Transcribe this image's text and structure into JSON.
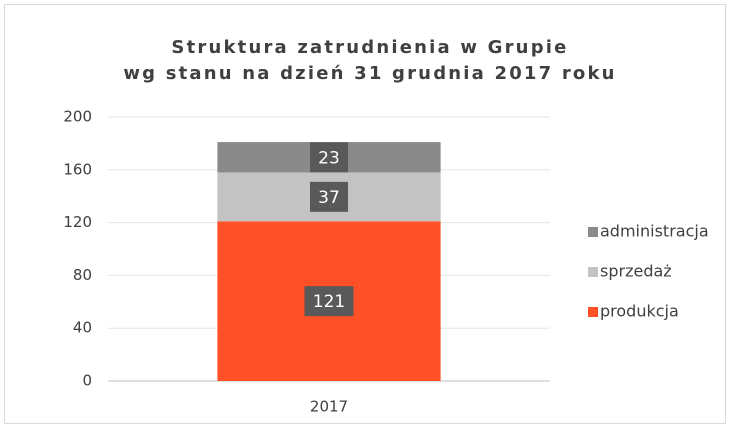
{
  "chart_data": {
    "type": "stacked_bar",
    "title": "Struktura zatrudnienia w Grupie",
    "subtitle": "wg stanu na dzień 31 grudnia 2017 roku",
    "categories": [
      "2017"
    ],
    "series": [
      {
        "name": "produkcja",
        "color": "#ff5028",
        "values": [
          121
        ]
      },
      {
        "name": "sprzedaż",
        "color": "#c3c3c3",
        "values": [
          37
        ]
      },
      {
        "name": "administracja",
        "color": "#8a8a8a",
        "values": [
          23
        ]
      }
    ],
    "ylim": [
      0,
      200
    ],
    "yticks": [
      0,
      40,
      80,
      120,
      160,
      200
    ],
    "grid": true,
    "legend": "right"
  }
}
